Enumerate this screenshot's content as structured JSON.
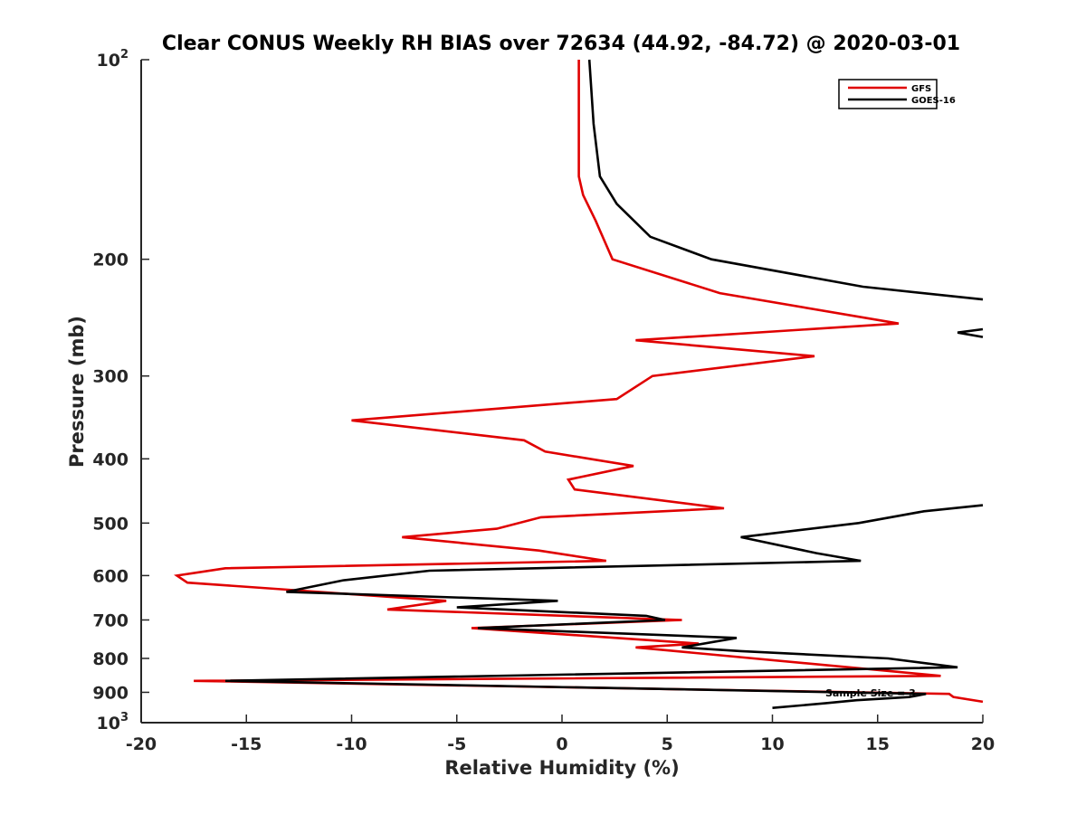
{
  "chart_data": {
    "type": "line",
    "title": "Clear CONUS Weekly RH BIAS over 72634 (44.92, -84.72) @ 2020-03-01",
    "xlabel": "Relative Humidity (%)",
    "ylabel": "Pressure (mb)",
    "xlim": [
      -20,
      20
    ],
    "ylim": [
      100,
      1000
    ],
    "yscale": "log",
    "y_reversed": true,
    "grid": false,
    "legend_position": "top-right",
    "x_ticks": [
      "-20",
      "-15",
      "-10",
      "-5",
      "0",
      "5",
      "10",
      "15",
      "20"
    ],
    "y_ticks": [
      {
        "value": 100,
        "base": "10",
        "exp": "2"
      },
      {
        "value": 200,
        "label": "200"
      },
      {
        "value": 300,
        "label": "300"
      },
      {
        "value": 400,
        "label": "400"
      },
      {
        "value": 500,
        "label": "500"
      },
      {
        "value": 600,
        "label": "600"
      },
      {
        "value": 700,
        "label": "700"
      },
      {
        "value": 800,
        "label": "800"
      },
      {
        "value": 900,
        "label": "900"
      },
      {
        "value": 1000,
        "base": "10",
        "exp": "3"
      }
    ],
    "annotation": "Sample Size = 3",
    "series": [
      {
        "name": "GFS",
        "color": "#e00000",
        "points": [
          [
            0.8,
            100
          ],
          [
            0.8,
            125
          ],
          [
            0.8,
            150
          ],
          [
            1.0,
            160
          ],
          [
            1.6,
            175
          ],
          [
            2.4,
            200
          ],
          [
            7.5,
            225
          ],
          [
            16.0,
            250
          ],
          [
            3.5,
            265
          ],
          [
            12.0,
            280
          ],
          [
            4.3,
            300
          ],
          [
            2.6,
            325
          ],
          [
            -10.0,
            350
          ],
          [
            -1.8,
            375
          ],
          [
            -0.8,
            390
          ],
          [
            3.4,
            410
          ],
          [
            0.3,
            430
          ],
          [
            0.6,
            445
          ],
          [
            7.7,
            475
          ],
          [
            -1.0,
            490
          ],
          [
            -3.1,
            510
          ],
          [
            -7.6,
            525
          ],
          [
            -1.1,
            550
          ],
          [
            2.1,
            570
          ],
          [
            -16.0,
            585
          ],
          [
            -18.3,
            600
          ],
          [
            -17.8,
            615
          ],
          [
            -5.5,
            655
          ],
          [
            -8.3,
            675
          ],
          [
            5.7,
            700
          ],
          [
            -4.3,
            720
          ],
          [
            6.5,
            760
          ],
          [
            3.5,
            770
          ],
          [
            18.0,
            850
          ],
          [
            -17.5,
            865
          ],
          [
            18.4,
            905
          ],
          [
            18.6,
            915
          ],
          [
            20.0,
            930
          ]
        ]
      },
      {
        "name": "GOES-16",
        "color": "#000000",
        "points_segments": [
          [
            [
              1.3,
              100
            ],
            [
              1.5,
              125
            ],
            [
              1.8,
              150
            ],
            [
              2.6,
              165
            ],
            [
              4.2,
              185
            ],
            [
              7.1,
              200
            ],
            [
              14.3,
              220
            ],
            [
              20.0,
              230
            ]
          ],
          [
            [
              20.0,
              255
            ],
            [
              18.8,
              258
            ],
            [
              20.0,
              262
            ]
          ],
          [
            [
              20.0,
              470
            ],
            [
              17.2,
              480
            ],
            [
              14.1,
              500
            ],
            [
              8.5,
              525
            ],
            [
              12.1,
              555
            ],
            [
              14.2,
              570
            ],
            [
              -6.3,
              590
            ],
            [
              -10.4,
              610
            ],
            [
              -13.1,
              635
            ],
            [
              -0.2,
              655
            ],
            [
              -5.0,
              670
            ],
            [
              4.0,
              690
            ],
            [
              4.9,
              700
            ],
            [
              -4.0,
              720
            ],
            [
              8.3,
              745
            ],
            [
              5.7,
              770
            ],
            [
              8.5,
              780
            ],
            [
              15.5,
              800
            ],
            [
              18.8,
              825
            ],
            [
              -16.0,
              865
            ],
            [
              17.3,
              905
            ],
            [
              16.5,
              915
            ],
            [
              14.0,
              925
            ],
            [
              12.5,
              935
            ],
            [
              10.0,
              950
            ]
          ]
        ]
      }
    ]
  }
}
